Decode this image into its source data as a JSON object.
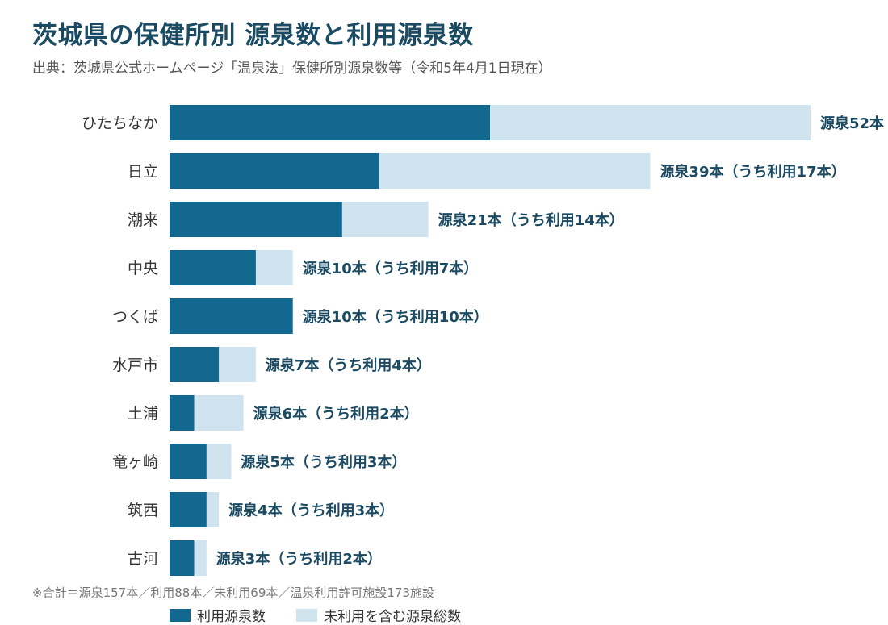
{
  "title": "茨城県の保健所別 源泉数と利用源泉数",
  "subtitle": "出典：茨城県公式ホームページ「温泉法」保健所別源泉数等（令和5年4月1日現在）",
  "footnote": "※合計＝源泉157本／利用88本／未利用69本／温泉利用許可施設173施設",
  "colors": {
    "used": "#136890",
    "total": "#cfe4ef",
    "label": "#1b4a63",
    "category": "#333333"
  },
  "chart_data": {
    "type": "bar",
    "orientation": "horizontal",
    "stacked": "overlay",
    "categories": [
      "ひたちなか",
      "日立",
      "潮来",
      "中央",
      "つくば",
      "水戸市",
      "土浦",
      "竜ヶ崎",
      "筑西",
      "古河"
    ],
    "series": [
      {
        "name": "利用源泉数",
        "values": [
          26,
          17,
          14,
          7,
          10,
          4,
          2,
          3,
          3,
          2
        ]
      },
      {
        "name": "未利用を含む源泉総数",
        "values": [
          52,
          39,
          21,
          10,
          10,
          7,
          6,
          5,
          4,
          3
        ]
      }
    ],
    "data_labels": [
      "源泉52本",
      "源泉39本（うち利用17本）",
      "源泉21本（うち利用14本）",
      "源泉10本（うち利用7本）",
      "源泉10本（うち利用10本）",
      "源泉7本（うち利用4本）",
      "源泉6本（うち利用2本）",
      "源泉5本（うち利用3本）",
      "源泉4本（うち利用3本）",
      "源泉3本（うち利用2本）"
    ],
    "xlim": [
      0,
      52
    ],
    "grid": false,
    "legend_position": "bottom-left"
  }
}
